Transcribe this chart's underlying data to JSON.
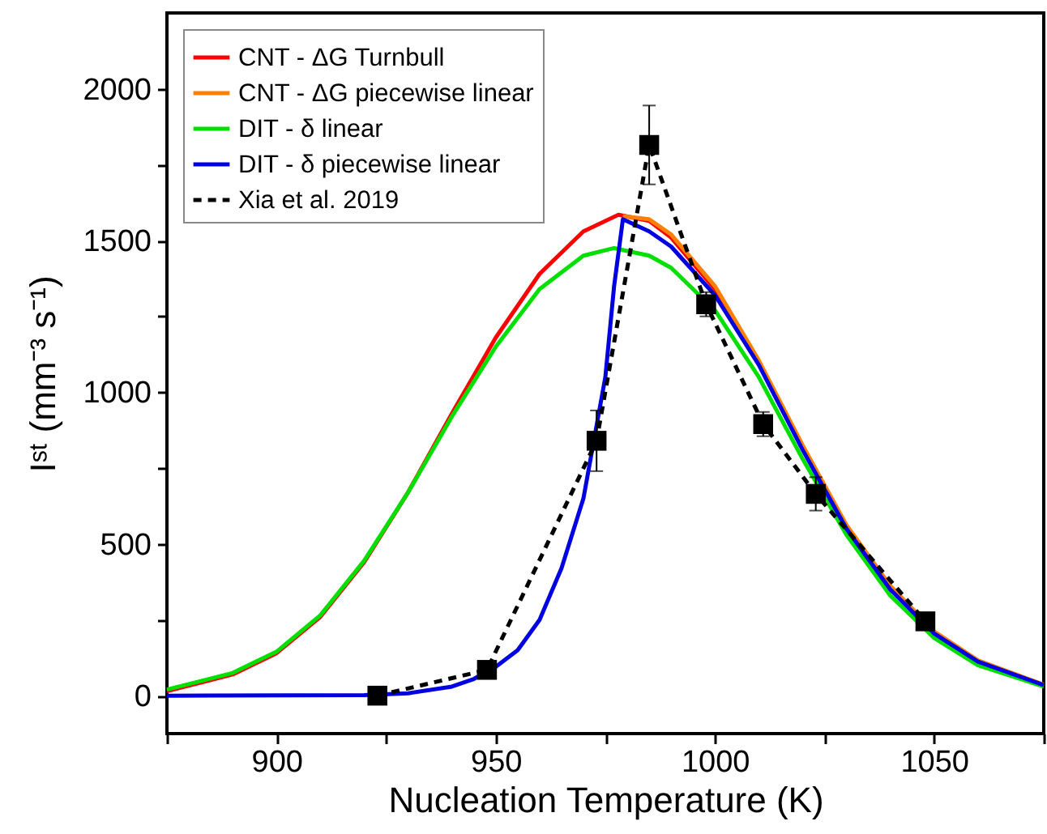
{
  "chart_data": {
    "type": "line",
    "xlabel": "Nucleation Temperature (K)",
    "ylabel": "Iˢᵗ (mm⁻³ s⁻¹)",
    "xlim": [
      875,
      1075
    ],
    "ylim": [
      -125,
      2250
    ],
    "xticks": [
      {
        "value": 875,
        "label": null
      },
      900,
      {
        "value": 925,
        "label": null
      },
      950,
      {
        "value": 975,
        "label": null
      },
      1000,
      {
        "value": 1025,
        "label": null
      },
      1050,
      {
        "value": 1075,
        "label": null
      }
    ],
    "yticks": [
      0,
      {
        "value": 250,
        "label": null
      },
      500,
      {
        "value": 750,
        "label": null
      },
      1000,
      {
        "value": 1250,
        "label": null
      },
      1500,
      {
        "value": 1750,
        "label": null
      },
      2000
    ],
    "legend": "top left",
    "grid": false,
    "line_style": "solid",
    "marker": "none",
    "series": [
      {
        "name": "CNT - ΔG Turnbull",
        "color": "#ff0000",
        "x": [
          875,
          890,
          900,
          910,
          920,
          930,
          940,
          950,
          960,
          970,
          978,
          985,
          990,
          1000,
          1010
        ],
        "values": [
          15,
          70,
          140,
          260,
          440,
          670,
          930,
          1180,
          1390,
          1530,
          1585,
          1565,
          1510,
          1340,
          1100
        ]
      },
      {
        "name": "CNT - ΔG piecewise linear",
        "color": "#ff8000",
        "x": [
          979,
          985,
          990,
          1000,
          1010,
          1020,
          1030,
          1040,
          1050,
          1060,
          1075
        ],
        "values": [
          1580,
          1570,
          1520,
          1350,
          1105,
          825,
          562,
          362,
          212,
          116,
          36
        ]
      },
      {
        "name": "DIT - δ linear",
        "color": "#00e000",
        "x": [
          875,
          890,
          900,
          910,
          920,
          930,
          940,
          950,
          960,
          970,
          977,
          985,
          990,
          1000,
          1010,
          1020,
          1030,
          1040,
          1050,
          1060,
          1075
        ],
        "values": [
          20,
          75,
          145,
          265,
          445,
          670,
          920,
          1150,
          1340,
          1450,
          1475,
          1450,
          1410,
          1270,
          1050,
          780,
          530,
          330,
          190,
          100,
          30
        ]
      },
      {
        "name": "DIT - δ piecewise linear",
        "color": "#0000e0",
        "x": [
          875,
          920,
          930,
          940,
          945,
          950,
          955,
          960,
          965,
          970,
          975,
          977,
          979,
          985,
          990,
          1000,
          1010,
          1020,
          1030,
          1040,
          1050,
          1060,
          1075
        ],
        "values": [
          0,
          2,
          8,
          30,
          55,
          95,
          150,
          250,
          420,
          650,
          1050,
          1350,
          1570,
          1530,
          1480,
          1320,
          1090,
          810,
          550,
          350,
          205,
          112,
          35
        ]
      },
      {
        "name": "Xia et al. 2019",
        "color": "#000000",
        "type": "line",
        "line_style": "dashed",
        "marker": "square",
        "x": [
          923,
          948,
          973,
          985,
          998,
          1011,
          1023,
          1048
        ],
        "values": [
          0,
          85,
          840,
          1815,
          1290,
          895,
          665,
          245
        ],
        "errors": [
          null,
          15,
          100,
          130,
          40,
          40,
          55,
          null
        ]
      }
    ]
  }
}
